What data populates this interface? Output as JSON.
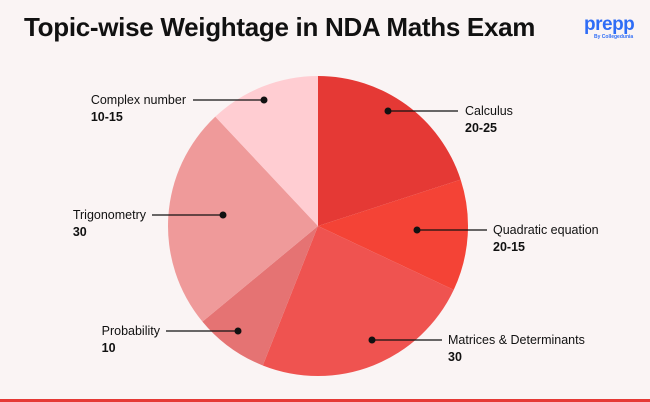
{
  "logo": {
    "text": "prepp",
    "subtext": "By Collegedunia"
  },
  "chart_data": {
    "type": "pie",
    "title": "Topic-wise Weightage in NDA Maths Exam",
    "start": "top",
    "direction": "clockwise",
    "slices": [
      {
        "label": "Calculus",
        "value_label": "20-25",
        "share_percent": 20,
        "color": "#e53935"
      },
      {
        "label": "Quadratic equation",
        "value_label": "20-15",
        "share_percent": 12,
        "color": "#f44336"
      },
      {
        "label": "Matrices & Determinants",
        "value_label": "30",
        "share_percent": 24,
        "color": "#ef5350"
      },
      {
        "label": "Probability",
        "value_label": "10",
        "share_percent": 8,
        "color": "#e57373"
      },
      {
        "label": "Trigonometry",
        "value_label": "30",
        "share_percent": 24,
        "color": "#ef9a9a"
      },
      {
        "label": "Complex number",
        "value_label": "10-15",
        "share_percent": 12,
        "color": "#ffcdd2"
      }
    ]
  }
}
